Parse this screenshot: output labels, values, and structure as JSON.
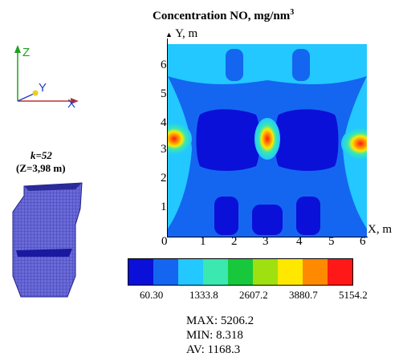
{
  "title": {
    "main": "Concentration NO, mg/nm",
    "sup": "3"
  },
  "axes": {
    "y_label": "Y, m",
    "x_label": "X, m",
    "y_ticks": [
      "6",
      "5",
      "4",
      "3",
      "2",
      "1"
    ],
    "x_ticks": [
      "0",
      "1",
      "2",
      "3",
      "4",
      "5",
      "6"
    ]
  },
  "orientation": {
    "z": "Z",
    "y": "Y",
    "x": "X"
  },
  "slice": {
    "k_label": "k=52",
    "z_label": "(Z=3,98 m)"
  },
  "colorbar": {
    "colors": [
      "#0a10d8",
      "#1466f0",
      "#22c8ff",
      "#3ae8b0",
      "#18c83c",
      "#9ee010",
      "#ffe800",
      "#ff8a00",
      "#ff1818"
    ],
    "labels": [
      "60.30",
      "1333.8",
      "2607.2",
      "3880.7",
      "5154.2"
    ]
  },
  "stats": {
    "max": "MAX: 5206.2",
    "min": "MIN: 8.318",
    "av": "AV: 1168.3"
  },
  "colors": {
    "plot_bg": "#1466f0",
    "dark": "#0a10d8",
    "mid": "#22c8ff",
    "hot": "#ff1818",
    "furnace": "#5050c8"
  }
}
